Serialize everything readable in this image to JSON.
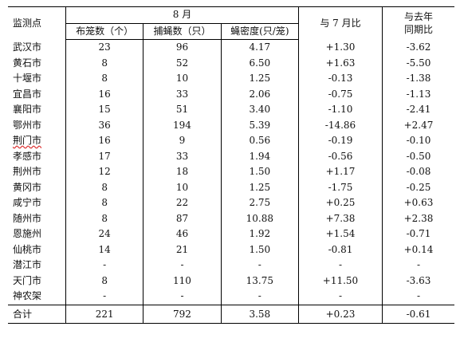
{
  "headers": {
    "city": "监测点",
    "month_group": "8 月",
    "cages": "布笼数（个）",
    "flies": "捕蝇数（只）",
    "density": "蝇密度(只/笼)",
    "vs_july": "与 7 月比",
    "vs_last_year_line1": "与去年",
    "vs_last_year_line2": "同期比"
  },
  "rows": [
    {
      "city": "武汉市",
      "cages": "23",
      "flies": "96",
      "density": "4.17",
      "vs_july": "+1.30",
      "vs_last_year": "-3.62"
    },
    {
      "city": "黄石市",
      "cages": "8",
      "flies": "52",
      "density": "6.50",
      "vs_july": "+1.63",
      "vs_last_year": "-5.50"
    },
    {
      "city": "十堰市",
      "cages": "8",
      "flies": "10",
      "density": "1.25",
      "vs_july": "-0.13",
      "vs_last_year": "-1.38"
    },
    {
      "city": "宜昌市",
      "cages": "16",
      "flies": "33",
      "density": "2.06",
      "vs_july": "-0.75",
      "vs_last_year": "-1.13"
    },
    {
      "city": "襄阳市",
      "cages": "15",
      "flies": "51",
      "density": "3.40",
      "vs_july": "-1.10",
      "vs_last_year": "-2.41"
    },
    {
      "city": "鄂州市",
      "cages": "36",
      "flies": "194",
      "density": "5.39",
      "vs_july": "-14.86",
      "vs_last_year": "+2.47"
    },
    {
      "city": "荆门市",
      "cages": "16",
      "flies": "9",
      "density": "0.56",
      "vs_july": "-0.19",
      "vs_last_year": "-0.10"
    },
    {
      "city": "孝感市",
      "cages": "17",
      "flies": "33",
      "density": "1.94",
      "vs_july": "-0.56",
      "vs_last_year": "-0.50"
    },
    {
      "city": "荆州市",
      "cages": "12",
      "flies": "18",
      "density": "1.50",
      "vs_july": "+1.17",
      "vs_last_year": "-0.08"
    },
    {
      "city": "黄冈市",
      "cages": "8",
      "flies": "10",
      "density": "1.25",
      "vs_july": "-1.75",
      "vs_last_year": "-0.25"
    },
    {
      "city": "咸宁市",
      "cages": "8",
      "flies": "22",
      "density": "2.75",
      "vs_july": "+0.25",
      "vs_last_year": "+0.63"
    },
    {
      "city": "随州市",
      "cages": "8",
      "flies": "87",
      "density": "10.88",
      "vs_july": "+7.38",
      "vs_last_year": "+2.38"
    },
    {
      "city": "恩施州",
      "cages": "24",
      "flies": "46",
      "density": "1.92",
      "vs_july": "+1.54",
      "vs_last_year": "-0.71"
    },
    {
      "city": "仙桃市",
      "cages": "14",
      "flies": "21",
      "density": "1.50",
      "vs_july": "-0.81",
      "vs_last_year": "+0.14"
    },
    {
      "city": "潜江市",
      "cages": "-",
      "flies": "-",
      "density": "-",
      "vs_july": "-",
      "vs_last_year": "-"
    },
    {
      "city": "天门市",
      "cages": "8",
      "flies": "110",
      "density": "13.75",
      "vs_july": "+11.50",
      "vs_last_year": "-3.63"
    },
    {
      "city": "神农架",
      "cages": "-",
      "flies": "-",
      "density": "-",
      "vs_july": "-",
      "vs_last_year": "-"
    }
  ],
  "total": {
    "city": "合计",
    "cages": "221",
    "flies": "792",
    "density": "3.58",
    "vs_july": "+0.23",
    "vs_last_year": "-0.61"
  }
}
